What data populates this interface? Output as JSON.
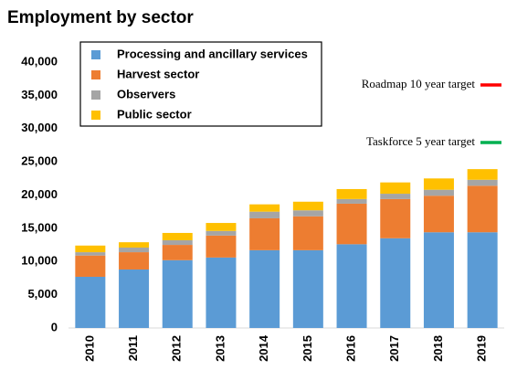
{
  "chart_data": {
    "type": "stacked_bar",
    "title": "Employment by sector",
    "categories": [
      "2010",
      "2011",
      "2012",
      "2013",
      "2014",
      "2015",
      "2016",
      "2017",
      "2018",
      "2019"
    ],
    "series": [
      {
        "name": "Processing and ancillary services",
        "color": "#5b9bd5",
        "values": [
          7700,
          8800,
          10200,
          10600,
          11700,
          11700,
          12600,
          13500,
          14400,
          14400
        ]
      },
      {
        "name": "Harvest sector",
        "color": "#ed7d31",
        "values": [
          3200,
          2600,
          2300,
          3300,
          4800,
          5100,
          6100,
          5900,
          5500,
          7000
        ]
      },
      {
        "name": "Observers",
        "color": "#a5a5a5",
        "values": [
          500,
          700,
          700,
          700,
          1000,
          900,
          700,
          800,
          900,
          900
        ]
      },
      {
        "name": "Public sector",
        "color": "#ffc000",
        "values": [
          1000,
          800,
          1100,
          1200,
          1100,
          1300,
          1500,
          1700,
          1700,
          1600
        ]
      }
    ],
    "ylim": [
      0,
      40000
    ],
    "yticks": [
      0,
      {
        "value": 5000,
        "label": "5,000"
      },
      {
        "value": 10000,
        "label": "10,000"
      },
      {
        "value": 15000,
        "label": "15,000"
      },
      {
        "value": 20000,
        "label": "20,000"
      },
      {
        "value": 25000,
        "label": "25,000"
      },
      {
        "value": 30000,
        "label": "30,000"
      },
      {
        "value": 35000,
        "label": "35,000"
      },
      {
        "value": 40000,
        "label": "40,000"
      }
    ],
    "grid": false,
    "annotations": [
      {
        "text": "Roadmap 10 year target",
        "color": "#ff0000"
      },
      {
        "text": "Taskforce 5 year target",
        "color": "#00b050"
      }
    ]
  }
}
